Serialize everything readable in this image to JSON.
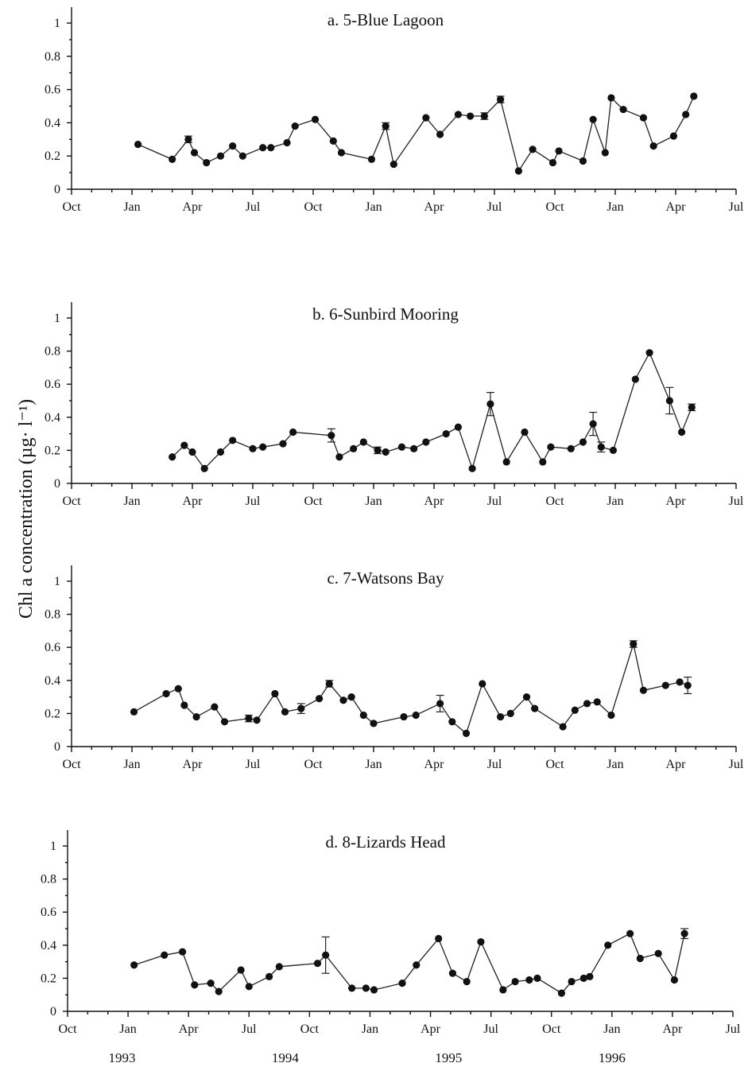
{
  "figure": {
    "y_axis_label": "Chl a concentration (µg· l⁻¹)"
  },
  "chart_data": [
    {
      "type": "line",
      "title": "a. 5-Blue Lagoon",
      "xlim": [
        0,
        33
      ],
      "ylim": [
        0,
        1
      ],
      "y_ticks": [
        "0",
        "0.2",
        "0.4",
        "0.6",
        "0.8",
        "1"
      ],
      "x_ticks": [
        "Oct",
        "Jan",
        "Apr",
        "Jul",
        "Oct",
        "Jan",
        "Apr",
        "Jul",
        "Oct",
        "Jan",
        "Apr",
        "Jul",
        "Oct",
        "Jan",
        "Apr",
        "Jul"
      ],
      "x_years": [],
      "grid": false,
      "points": [
        {
          "x": 3.3,
          "y": 0.27
        },
        {
          "x": 5.0,
          "y": 0.18
        },
        {
          "x": 5.8,
          "y": 0.3,
          "err": 0.02
        },
        {
          "x": 6.1,
          "y": 0.22
        },
        {
          "x": 6.7,
          "y": 0.16
        },
        {
          "x": 7.4,
          "y": 0.2
        },
        {
          "x": 8.0,
          "y": 0.26
        },
        {
          "x": 8.5,
          "y": 0.2
        },
        {
          "x": 9.5,
          "y": 0.25
        },
        {
          "x": 9.9,
          "y": 0.25
        },
        {
          "x": 10.7,
          "y": 0.28
        },
        {
          "x": 11.1,
          "y": 0.38
        },
        {
          "x": 12.1,
          "y": 0.42
        },
        {
          "x": 13.0,
          "y": 0.29
        },
        {
          "x": 13.4,
          "y": 0.22
        },
        {
          "x": 14.9,
          "y": 0.18
        },
        {
          "x": 15.6,
          "y": 0.38,
          "err": 0.02
        },
        {
          "x": 16.0,
          "y": 0.15
        },
        {
          "x": 17.6,
          "y": 0.43
        },
        {
          "x": 18.3,
          "y": 0.33
        },
        {
          "x": 19.2,
          "y": 0.45
        },
        {
          "x": 19.8,
          "y": 0.44
        },
        {
          "x": 20.5,
          "y": 0.44,
          "err": 0.02
        },
        {
          "x": 21.3,
          "y": 0.54,
          "err": 0.02
        },
        {
          "x": 22.2,
          "y": 0.11
        },
        {
          "x": 22.9,
          "y": 0.24
        },
        {
          "x": 23.9,
          "y": 0.16
        },
        {
          "x": 24.2,
          "y": 0.23
        },
        {
          "x": 25.4,
          "y": 0.17
        },
        {
          "x": 25.9,
          "y": 0.42
        },
        {
          "x": 26.5,
          "y": 0.22
        },
        {
          "x": 26.8,
          "y": 0.55
        },
        {
          "x": 27.4,
          "y": 0.48
        },
        {
          "x": 28.4,
          "y": 0.43
        },
        {
          "x": 28.9,
          "y": 0.26
        },
        {
          "x": 29.9,
          "y": 0.32
        },
        {
          "x": 30.5,
          "y": 0.45
        },
        {
          "x": 30.9,
          "y": 0.56
        }
      ]
    },
    {
      "type": "line",
      "title": "b. 6-Sunbird Mooring",
      "xlim": [
        0,
        33
      ],
      "ylim": [
        0,
        1
      ],
      "y_ticks": [
        "0",
        "0.2",
        "0.4",
        "0.6",
        "0.8",
        "1"
      ],
      "x_ticks": [
        "Oct",
        "Jan",
        "Apr",
        "Jul",
        "Oct",
        "Jan",
        "Apr",
        "Jul",
        "Oct",
        "Jan",
        "Apr",
        "Jul",
        "Oct",
        "Jan",
        "Apr",
        "Jul"
      ],
      "x_years": [],
      "grid": false,
      "points": [
        {
          "x": 5.0,
          "y": 0.16
        },
        {
          "x": 5.6,
          "y": 0.23
        },
        {
          "x": 6.0,
          "y": 0.19
        },
        {
          "x": 6.6,
          "y": 0.09
        },
        {
          "x": 7.4,
          "y": 0.19
        },
        {
          "x": 8.0,
          "y": 0.26
        },
        {
          "x": 9.0,
          "y": 0.21
        },
        {
          "x": 9.5,
          "y": 0.22
        },
        {
          "x": 10.5,
          "y": 0.24
        },
        {
          "x": 11.0,
          "y": 0.31
        },
        {
          "x": 12.9,
          "y": 0.29,
          "err": 0.04
        },
        {
          "x": 13.3,
          "y": 0.16
        },
        {
          "x": 14.0,
          "y": 0.21
        },
        {
          "x": 14.5,
          "y": 0.25
        },
        {
          "x": 15.2,
          "y": 0.2,
          "err": 0.02
        },
        {
          "x": 15.6,
          "y": 0.19
        },
        {
          "x": 16.4,
          "y": 0.22
        },
        {
          "x": 17.0,
          "y": 0.21
        },
        {
          "x": 17.6,
          "y": 0.25
        },
        {
          "x": 18.6,
          "y": 0.3
        },
        {
          "x": 19.2,
          "y": 0.34
        },
        {
          "x": 19.9,
          "y": 0.09
        },
        {
          "x": 20.8,
          "y": 0.48,
          "err": 0.07
        },
        {
          "x": 21.6,
          "y": 0.13
        },
        {
          "x": 22.5,
          "y": 0.31
        },
        {
          "x": 23.4,
          "y": 0.13
        },
        {
          "x": 23.8,
          "y": 0.22
        },
        {
          "x": 24.8,
          "y": 0.21
        },
        {
          "x": 25.4,
          "y": 0.25
        },
        {
          "x": 25.9,
          "y": 0.36,
          "err": 0.07
        },
        {
          "x": 26.3,
          "y": 0.22,
          "err": 0.03
        },
        {
          "x": 26.9,
          "y": 0.2
        },
        {
          "x": 28.0,
          "y": 0.63
        },
        {
          "x": 28.7,
          "y": 0.79
        },
        {
          "x": 29.7,
          "y": 0.5,
          "err": 0.08
        },
        {
          "x": 30.3,
          "y": 0.31
        },
        {
          "x": 30.8,
          "y": 0.46,
          "err": 0.02
        }
      ]
    },
    {
      "type": "line",
      "title": "c. 7-Watsons Bay",
      "xlim": [
        0,
        33
      ],
      "ylim": [
        0,
        1
      ],
      "y_ticks": [
        "0",
        "0.2",
        "0.4",
        "0.6",
        "0.8",
        "1"
      ],
      "x_ticks": [
        "Oct",
        "Jan",
        "Apr",
        "Jul",
        "Oct",
        "Jan",
        "Apr",
        "Jul",
        "Oct",
        "Jan",
        "Apr",
        "Jul",
        "Oct",
        "Jan",
        "Apr",
        "Jul"
      ],
      "x_years": [],
      "grid": false,
      "points": [
        {
          "x": 3.1,
          "y": 0.21
        },
        {
          "x": 4.7,
          "y": 0.32
        },
        {
          "x": 5.3,
          "y": 0.35
        },
        {
          "x": 5.6,
          "y": 0.25
        },
        {
          "x": 6.2,
          "y": 0.18
        },
        {
          "x": 7.1,
          "y": 0.24
        },
        {
          "x": 7.6,
          "y": 0.15
        },
        {
          "x": 8.8,
          "y": 0.17,
          "err": 0.02
        },
        {
          "x": 9.2,
          "y": 0.16
        },
        {
          "x": 10.1,
          "y": 0.32
        },
        {
          "x": 10.6,
          "y": 0.21
        },
        {
          "x": 11.4,
          "y": 0.23,
          "err": 0.03
        },
        {
          "x": 12.3,
          "y": 0.29
        },
        {
          "x": 12.8,
          "y": 0.38,
          "err": 0.02
        },
        {
          "x": 13.5,
          "y": 0.28
        },
        {
          "x": 13.9,
          "y": 0.3
        },
        {
          "x": 14.5,
          "y": 0.19
        },
        {
          "x": 15.0,
          "y": 0.14
        },
        {
          "x": 16.5,
          "y": 0.18
        },
        {
          "x": 17.1,
          "y": 0.19
        },
        {
          "x": 18.3,
          "y": 0.26,
          "err": 0.05
        },
        {
          "x": 18.9,
          "y": 0.15
        },
        {
          "x": 19.6,
          "y": 0.08
        },
        {
          "x": 20.4,
          "y": 0.38
        },
        {
          "x": 21.3,
          "y": 0.18
        },
        {
          "x": 21.8,
          "y": 0.2
        },
        {
          "x": 22.6,
          "y": 0.3
        },
        {
          "x": 23.0,
          "y": 0.23
        },
        {
          "x": 24.4,
          "y": 0.12
        },
        {
          "x": 25.0,
          "y": 0.22
        },
        {
          "x": 25.6,
          "y": 0.26
        },
        {
          "x": 26.1,
          "y": 0.27
        },
        {
          "x": 26.8,
          "y": 0.19
        },
        {
          "x": 27.9,
          "y": 0.62,
          "err": 0.02
        },
        {
          "x": 28.4,
          "y": 0.34
        },
        {
          "x": 29.5,
          "y": 0.37
        },
        {
          "x": 30.2,
          "y": 0.39
        },
        {
          "x": 30.6,
          "y": 0.37,
          "err": 0.05
        }
      ]
    },
    {
      "type": "line",
      "title": "d. 8-Lizards Head",
      "xlim": [
        0,
        33
      ],
      "ylim": [
        0,
        1
      ],
      "y_ticks": [
        "0",
        "0.2",
        "0.4",
        "0.6",
        "0.8",
        "1"
      ],
      "x_ticks": [
        "Oct",
        "Jan",
        "Apr",
        "Jul",
        "Oct",
        "Jan",
        "Apr",
        "Jul",
        "Oct",
        "Jan",
        "Apr",
        "Jul",
        "Oct",
        "Jan",
        "Apr",
        "Jul"
      ],
      "x_years": [
        {
          "label": "1993",
          "x": 2.7
        },
        {
          "label": "1994",
          "x": 10.8
        },
        {
          "label": "1995",
          "x": 18.9
        },
        {
          "label": "1996",
          "x": 27.0
        }
      ],
      "grid": false,
      "points": [
        {
          "x": 3.3,
          "y": 0.28
        },
        {
          "x": 4.8,
          "y": 0.34
        },
        {
          "x": 5.7,
          "y": 0.36
        },
        {
          "x": 6.3,
          "y": 0.16
        },
        {
          "x": 7.1,
          "y": 0.17
        },
        {
          "x": 7.5,
          "y": 0.12
        },
        {
          "x": 8.6,
          "y": 0.25
        },
        {
          "x": 9.0,
          "y": 0.15
        },
        {
          "x": 10.0,
          "y": 0.21
        },
        {
          "x": 10.5,
          "y": 0.27
        },
        {
          "x": 12.4,
          "y": 0.29
        },
        {
          "x": 12.8,
          "y": 0.34,
          "err": 0.11
        },
        {
          "x": 14.1,
          "y": 0.14
        },
        {
          "x": 14.8,
          "y": 0.14
        },
        {
          "x": 15.2,
          "y": 0.13
        },
        {
          "x": 16.6,
          "y": 0.17
        },
        {
          "x": 17.3,
          "y": 0.28
        },
        {
          "x": 18.4,
          "y": 0.44
        },
        {
          "x": 19.1,
          "y": 0.23
        },
        {
          "x": 19.8,
          "y": 0.18
        },
        {
          "x": 20.5,
          "y": 0.42
        },
        {
          "x": 21.6,
          "y": 0.13
        },
        {
          "x": 22.2,
          "y": 0.18
        },
        {
          "x": 22.9,
          "y": 0.19
        },
        {
          "x": 23.3,
          "y": 0.2
        },
        {
          "x": 24.5,
          "y": 0.11
        },
        {
          "x": 25.0,
          "y": 0.18
        },
        {
          "x": 25.6,
          "y": 0.2
        },
        {
          "x": 25.9,
          "y": 0.21
        },
        {
          "x": 26.8,
          "y": 0.4
        },
        {
          "x": 27.9,
          "y": 0.47
        },
        {
          "x": 28.4,
          "y": 0.32
        },
        {
          "x": 29.3,
          "y": 0.35
        },
        {
          "x": 30.1,
          "y": 0.19
        },
        {
          "x": 30.6,
          "y": 0.47,
          "err": 0.03
        }
      ]
    }
  ]
}
